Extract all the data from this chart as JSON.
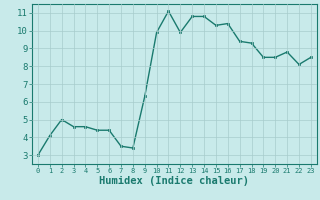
{
  "x": [
    0,
    1,
    2,
    3,
    4,
    5,
    6,
    7,
    8,
    9,
    10,
    11,
    12,
    13,
    14,
    15,
    16,
    17,
    18,
    19,
    20,
    21,
    22,
    23
  ],
  "y": [
    3.0,
    4.1,
    5.0,
    4.6,
    4.6,
    4.4,
    4.4,
    3.5,
    3.4,
    6.3,
    9.9,
    11.1,
    9.9,
    10.8,
    10.8,
    10.3,
    10.4,
    9.4,
    9.3,
    8.5,
    8.5,
    8.8,
    8.1,
    8.5
  ],
  "xlabel": "Humidex (Indice chaleur)",
  "ylabel": "",
  "xlim": [
    -0.5,
    23.5
  ],
  "ylim": [
    2.5,
    11.5
  ],
  "yticks": [
    3,
    4,
    5,
    6,
    7,
    8,
    9,
    10,
    11
  ],
  "xticks": [
    0,
    1,
    2,
    3,
    4,
    5,
    6,
    7,
    8,
    9,
    10,
    11,
    12,
    13,
    14,
    15,
    16,
    17,
    18,
    19,
    20,
    21,
    22,
    23
  ],
  "line_color": "#1a7a6e",
  "marker_color": "#1a7a6e",
  "bg_color": "#c8eaea",
  "grid_color": "#a8cccc",
  "axis_color": "#1a7a6e",
  "tick_label_color": "#1a7a6e",
  "xlabel_color": "#1a7a6e",
  "font_size_ticks_y": 6.5,
  "font_size_ticks_x": 5.0,
  "font_size_xlabel": 7.5,
  "line_width": 1.0,
  "marker_size": 2.0
}
